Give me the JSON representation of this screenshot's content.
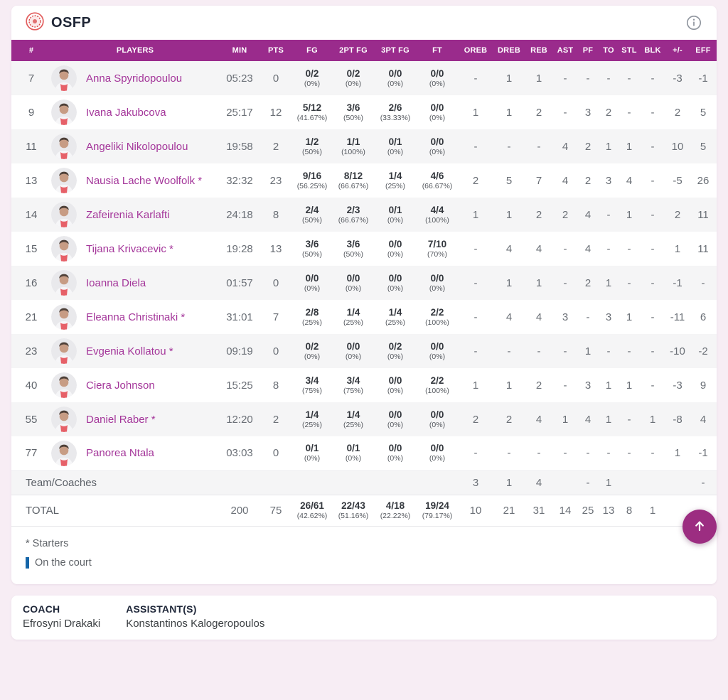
{
  "team": {
    "name": "OSFP"
  },
  "colors": {
    "header_purple": "#9A2B8C",
    "player_name_purple": "#A4369A",
    "on_court_blue": "#1565A8",
    "fab_purple": "#9C2D81",
    "page_background": "#f7edf4"
  },
  "icons": {
    "team_logo": "olympiacos-crest",
    "info": "info-circle",
    "scroll_top": "arrow-up"
  },
  "table": {
    "columns": [
      "#",
      "PLAYERS",
      "MIN",
      "PTS",
      "FG",
      "2PT FG",
      "3PT FG",
      "FT",
      "OREB",
      "DREB",
      "REB",
      "AST",
      "PF",
      "TO",
      "STL",
      "BLK",
      "+/-",
      "EFF"
    ],
    "players": [
      {
        "num": "7",
        "name": "Anna Spyridopoulou",
        "min": "05:23",
        "pts": "0",
        "fg": "0/2",
        "fg_pct": "(0%)",
        "fg2": "0/2",
        "fg2_pct": "(0%)",
        "fg3": "0/0",
        "fg3_pct": "(0%)",
        "ft": "0/0",
        "ft_pct": "(0%)",
        "oreb": "-",
        "dreb": "1",
        "reb": "1",
        "ast": "-",
        "pf": "-",
        "to": "-",
        "stl": "-",
        "blk": "-",
        "pm": "-3",
        "eff": "-1",
        "on_court": false
      },
      {
        "num": "9",
        "name": "Ivana Jakubcova",
        "min": "25:17",
        "pts": "12",
        "fg": "5/12",
        "fg_pct": "(41.67%)",
        "fg2": "3/6",
        "fg2_pct": "(50%)",
        "fg3": "2/6",
        "fg3_pct": "(33.33%)",
        "ft": "0/0",
        "ft_pct": "(0%)",
        "oreb": "1",
        "dreb": "1",
        "reb": "2",
        "ast": "-",
        "pf": "3",
        "to": "2",
        "stl": "-",
        "blk": "-",
        "pm": "2",
        "eff": "5",
        "on_court": true
      },
      {
        "num": "11",
        "name": "Angeliki Nikolopoulou",
        "min": "19:58",
        "pts": "2",
        "fg": "1/2",
        "fg_pct": "(50%)",
        "fg2": "1/1",
        "fg2_pct": "(100%)",
        "fg3": "0/1",
        "fg3_pct": "(0%)",
        "ft": "0/0",
        "ft_pct": "(0%)",
        "oreb": "-",
        "dreb": "-",
        "reb": "-",
        "ast": "4",
        "pf": "2",
        "to": "1",
        "stl": "1",
        "blk": "-",
        "pm": "10",
        "eff": "5",
        "on_court": false
      },
      {
        "num": "13",
        "name": "Nausia Lache Woolfolk *",
        "min": "32:32",
        "pts": "23",
        "fg": "9/16",
        "fg_pct": "(56.25%)",
        "fg2": "8/12",
        "fg2_pct": "(66.67%)",
        "fg3": "1/4",
        "fg3_pct": "(25%)",
        "ft": "4/6",
        "ft_pct": "(66.67%)",
        "oreb": "2",
        "dreb": "5",
        "reb": "7",
        "ast": "4",
        "pf": "2",
        "to": "3",
        "stl": "4",
        "blk": "-",
        "pm": "-5",
        "eff": "26",
        "on_court": true
      },
      {
        "num": "14",
        "name": "Zafeirenia Karlafti",
        "min": "24:18",
        "pts": "8",
        "fg": "2/4",
        "fg_pct": "(50%)",
        "fg2": "2/3",
        "fg2_pct": "(66.67%)",
        "fg3": "0/1",
        "fg3_pct": "(0%)",
        "ft": "4/4",
        "ft_pct": "(100%)",
        "oreb": "1",
        "dreb": "1",
        "reb": "2",
        "ast": "2",
        "pf": "4",
        "to": "-",
        "stl": "1",
        "blk": "-",
        "pm": "2",
        "eff": "11",
        "on_court": true
      },
      {
        "num": "15",
        "name": "Tijana Krivacevic *",
        "min": "19:28",
        "pts": "13",
        "fg": "3/6",
        "fg_pct": "(50%)",
        "fg2": "3/6",
        "fg2_pct": "(50%)",
        "fg3": "0/0",
        "fg3_pct": "(0%)",
        "ft": "7/10",
        "ft_pct": "(70%)",
        "oreb": "-",
        "dreb": "4",
        "reb": "4",
        "ast": "-",
        "pf": "4",
        "to": "-",
        "stl": "-",
        "blk": "-",
        "pm": "1",
        "eff": "11",
        "on_court": false
      },
      {
        "num": "16",
        "name": "Ioanna Diela",
        "min": "01:57",
        "pts": "0",
        "fg": "0/0",
        "fg_pct": "(0%)",
        "fg2": "0/0",
        "fg2_pct": "(0%)",
        "fg3": "0/0",
        "fg3_pct": "(0%)",
        "ft": "0/0",
        "ft_pct": "(0%)",
        "oreb": "-",
        "dreb": "1",
        "reb": "1",
        "ast": "-",
        "pf": "2",
        "to": "1",
        "stl": "-",
        "blk": "-",
        "pm": "-1",
        "eff": "-",
        "on_court": false
      },
      {
        "num": "21",
        "name": "Eleanna Christinaki *",
        "min": "31:01",
        "pts": "7",
        "fg": "2/8",
        "fg_pct": "(25%)",
        "fg2": "1/4",
        "fg2_pct": "(25%)",
        "fg3": "1/4",
        "fg3_pct": "(25%)",
        "ft": "2/2",
        "ft_pct": "(100%)",
        "oreb": "-",
        "dreb": "4",
        "reb": "4",
        "ast": "3",
        "pf": "-",
        "to": "3",
        "stl": "1",
        "blk": "-",
        "pm": "-11",
        "eff": "6",
        "on_court": true
      },
      {
        "num": "23",
        "name": "Evgenia Kollatou *",
        "min": "09:19",
        "pts": "0",
        "fg": "0/2",
        "fg_pct": "(0%)",
        "fg2": "0/0",
        "fg2_pct": "(0%)",
        "fg3": "0/2",
        "fg3_pct": "(0%)",
        "ft": "0/0",
        "ft_pct": "(0%)",
        "oreb": "-",
        "dreb": "-",
        "reb": "-",
        "ast": "-",
        "pf": "1",
        "to": "-",
        "stl": "-",
        "blk": "-",
        "pm": "-10",
        "eff": "-2",
        "on_court": false
      },
      {
        "num": "40",
        "name": "Ciera Johnson",
        "min": "15:25",
        "pts": "8",
        "fg": "3/4",
        "fg_pct": "(75%)",
        "fg2": "3/4",
        "fg2_pct": "(75%)",
        "fg3": "0/0",
        "fg3_pct": "(0%)",
        "ft": "2/2",
        "ft_pct": "(100%)",
        "oreb": "1",
        "dreb": "1",
        "reb": "2",
        "ast": "-",
        "pf": "3",
        "to": "1",
        "stl": "1",
        "blk": "-",
        "pm": "-3",
        "eff": "9",
        "on_court": true
      },
      {
        "num": "55",
        "name": "Daniel Raber *",
        "min": "12:20",
        "pts": "2",
        "fg": "1/4",
        "fg_pct": "(25%)",
        "fg2": "1/4",
        "fg2_pct": "(25%)",
        "fg3": "0/0",
        "fg3_pct": "(0%)",
        "ft": "0/0",
        "ft_pct": "(0%)",
        "oreb": "2",
        "dreb": "2",
        "reb": "4",
        "ast": "1",
        "pf": "4",
        "to": "1",
        "stl": "-",
        "blk": "1",
        "pm": "-8",
        "eff": "4",
        "on_court": false
      },
      {
        "num": "77",
        "name": "Panorea Ntala",
        "min": "03:03",
        "pts": "0",
        "fg": "0/1",
        "fg_pct": "(0%)",
        "fg2": "0/1",
        "fg2_pct": "(0%)",
        "fg3": "0/0",
        "fg3_pct": "(0%)",
        "ft": "0/0",
        "ft_pct": "(0%)",
        "oreb": "-",
        "dreb": "-",
        "reb": "-",
        "ast": "-",
        "pf": "-",
        "to": "-",
        "stl": "-",
        "blk": "-",
        "pm": "1",
        "eff": "-1",
        "on_court": false
      }
    ],
    "team_row": {
      "label": "Team/Coaches",
      "oreb": "3",
      "dreb": "1",
      "reb": "4",
      "ast": "",
      "pf": "-",
      "to": "1",
      "stl": "",
      "blk": "",
      "pm": "",
      "eff": "-"
    },
    "total_row": {
      "label": "TOTAL",
      "min": "200",
      "pts": "75",
      "fg": "26/61",
      "fg_pct": "(42.62%)",
      "fg2": "22/43",
      "fg2_pct": "(51.16%)",
      "fg3": "4/18",
      "fg3_pct": "(22.22%)",
      "ft": "19/24",
      "ft_pct": "(79.17%)",
      "oreb": "10",
      "dreb": "21",
      "reb": "31",
      "ast": "14",
      "pf": "25",
      "to": "13",
      "stl": "8",
      "blk": "1",
      "pm": "",
      "eff": "-"
    }
  },
  "legend": {
    "starters": "* Starters",
    "on_court": "On the court"
  },
  "coaches": {
    "coach_label": "COACH",
    "coach_name": "Efrosyni Drakaki",
    "assistants_label": "ASSISTANT(S)",
    "assistants_name": "Konstantinos Kalogeropoulos"
  }
}
